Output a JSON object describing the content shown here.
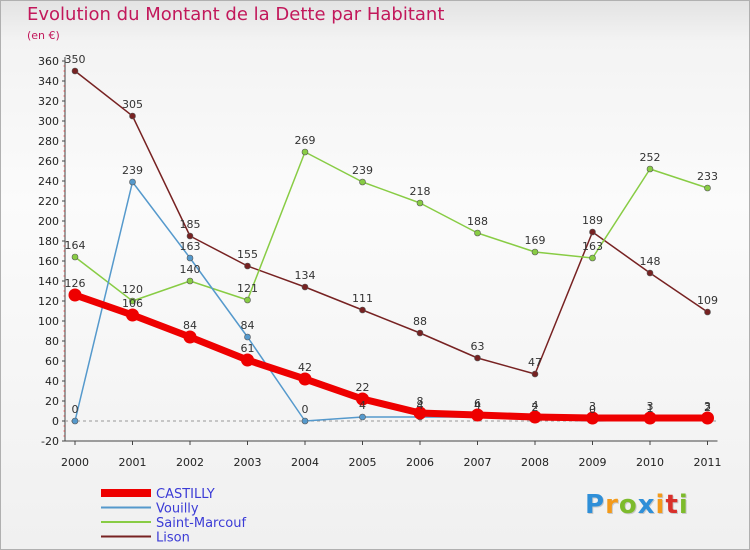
{
  "chart_data": {
    "type": "line",
    "title": "Evolution du Montant de la Dette par Habitant",
    "subtitle": "(en €)",
    "x": [
      "2000",
      "2001",
      "2002",
      "2003",
      "2004",
      "2005",
      "2006",
      "2007",
      "2008",
      "2009",
      "2010",
      "2011"
    ],
    "ylim": [
      -20,
      360
    ],
    "yticks": [
      -20,
      0,
      20,
      40,
      60,
      80,
      100,
      120,
      140,
      160,
      180,
      200,
      220,
      240,
      260,
      280,
      300,
      320,
      340,
      360
    ],
    "grid": false,
    "legend_position": "bottom-left",
    "series": [
      {
        "name": "CASTILLY",
        "color": "#ee0000",
        "values": [
          126,
          106,
          84,
          61,
          42,
          22,
          8,
          6,
          4,
          3,
          3,
          3
        ],
        "labels": [
          "126",
          "",
          "84",
          "61",
          "42",
          "22",
          "8",
          "6",
          "4",
          "3",
          "3",
          "3"
        ]
      },
      {
        "name": "Vouilly",
        "color": "#5599cc",
        "values": [
          0,
          239,
          163,
          84,
          0,
          4,
          4,
          4,
          2,
          0,
          1,
          2
        ],
        "labels": [
          "0",
          "239",
          "163",
          "84",
          "0",
          "4",
          "4",
          "4",
          "2",
          "0",
          "1",
          "2"
        ]
      },
      {
        "name": "Saint-Marcouf",
        "color": "#88cc44",
        "values": [
          164,
          120,
          140,
          121,
          269,
          239,
          218,
          188,
          169,
          163,
          252,
          233
        ],
        "labels": [
          "164",
          "120",
          "140",
          "121",
          "269",
          "239",
          "218",
          "188",
          "169",
          "163",
          "252",
          "233"
        ]
      },
      {
        "name": "Lison",
        "color": "#772222",
        "values": [
          350,
          305,
          185,
          155,
          134,
          111,
          88,
          63,
          47,
          189,
          148,
          109
        ],
        "labels": [
          "350",
          "305",
          "185",
          "155",
          "134",
          "111",
          "88",
          "63",
          "47",
          "189",
          "148",
          "109"
        ]
      }
    ],
    "overlap_labels": [
      "106"
    ]
  },
  "brand": {
    "letters": [
      "P",
      "r",
      "o",
      "x",
      "i",
      "t",
      "i"
    ],
    "colors": [
      "#2f8fd8",
      "#f39a1a",
      "#7dbb2c",
      "#2f8fd8",
      "#f39a1a",
      "#d9302a",
      "#7dbb2c"
    ]
  }
}
